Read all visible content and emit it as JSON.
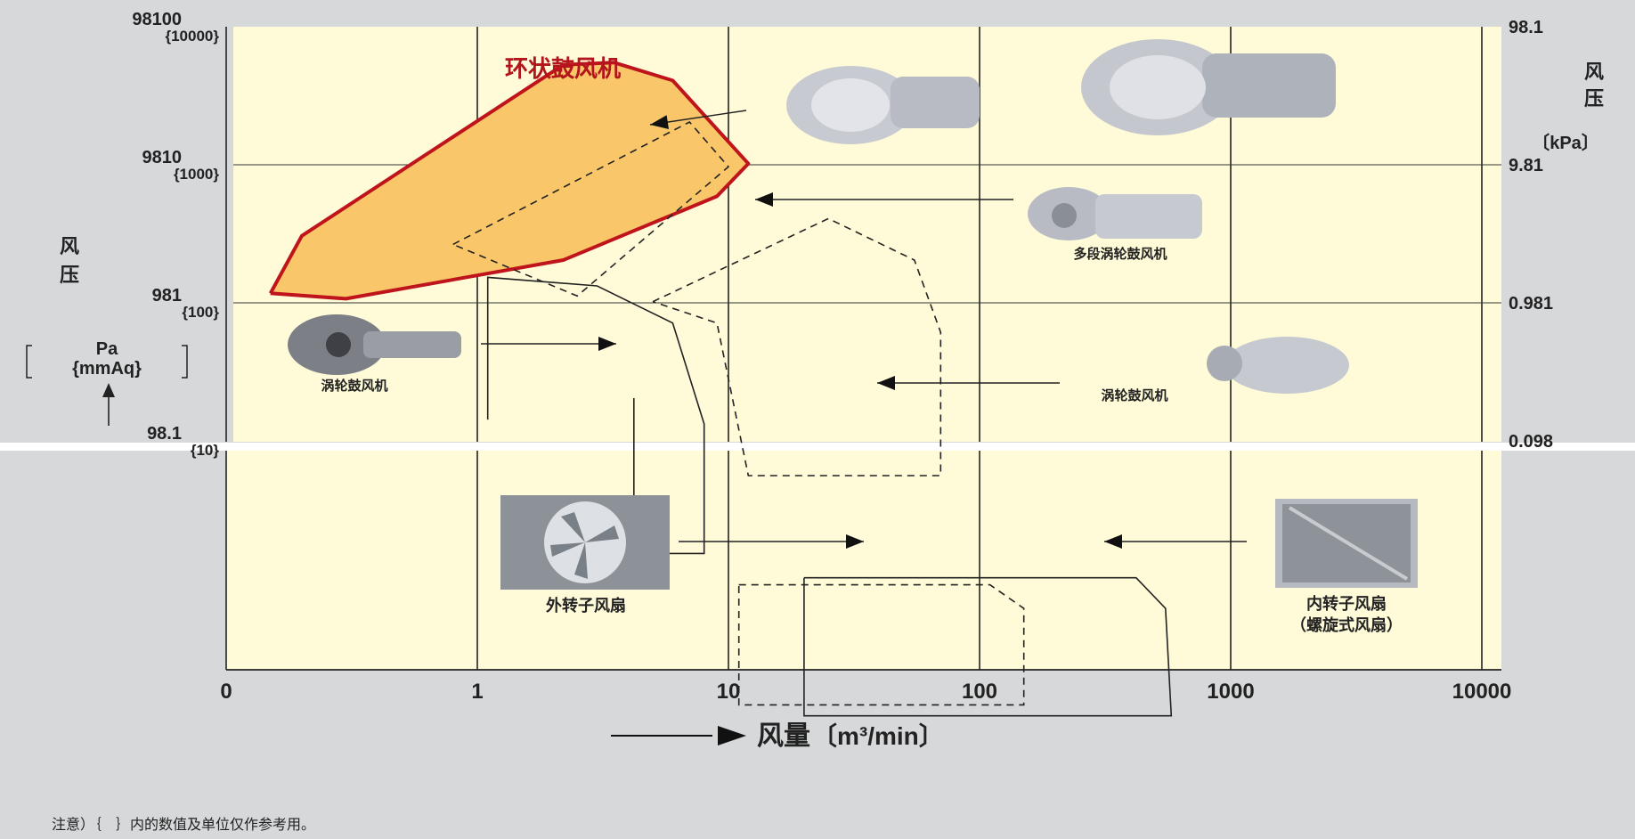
{
  "chart_data": {
    "type": "area",
    "xscale": "log",
    "x_ticks": [
      "0",
      "1",
      "10",
      "100",
      "1000",
      "10000"
    ],
    "x_label": "风量",
    "x_unit": "〔m³/min〕",
    "y_label_left": "风压",
    "y_unit_left": [
      "Pa",
      "{mmAq}"
    ],
    "y_ticks_left": [
      {
        "pa": "98100",
        "mmaq": "{10000}"
      },
      {
        "pa": "9810",
        "mmaq": "{1000}"
      },
      {
        "pa": "981",
        "mmaq": "{100}"
      },
      {
        "pa": "98.1",
        "mmaq": "{10}"
      }
    ],
    "y_label_right": "风压",
    "y_unit_right": "〔kPa〕",
    "y_ticks_right": [
      "98.1",
      "9.81",
      "0.981",
      "0.098"
    ],
    "highlight_title": "环状鼓风机",
    "highlight_color": "#f9c76a",
    "highlight_border": "#c0141c",
    "background_color": "#fffbd8",
    "series": [
      {
        "name": "环状鼓风机",
        "style": "filled",
        "points": [
          [
            0.15,
            1150
          ],
          [
            0.2,
            3000
          ],
          [
            2.2,
            52000
          ],
          [
            3.5,
            54000
          ],
          [
            6,
            40000
          ],
          [
            12,
            10000
          ],
          [
            9,
            5800
          ],
          [
            2.2,
            2000
          ],
          [
            0.3,
            1050
          ],
          [
            0.15,
            1150
          ]
        ]
      },
      {
        "name": "环状鼓风机 (inner)",
        "style": "dashed",
        "points": [
          [
            0.8,
            2600
          ],
          [
            7,
            20000
          ],
          [
            10,
            9500
          ],
          [
            2.5,
            1100
          ],
          [
            0.8,
            2600
          ]
        ]
      },
      {
        "name": "涡轮鼓风机 (small)",
        "style": "solid",
        "points": [
          [
            1.1,
            140
          ],
          [
            1.1,
            1500
          ],
          [
            3,
            1300
          ],
          [
            6,
            700
          ],
          [
            8,
            130
          ],
          [
            8,
            15
          ],
          [
            4.2,
            15
          ],
          [
            4.2,
            200
          ]
        ]
      },
      {
        "name": "多段涡轮鼓风机",
        "style": "dashed",
        "points": [
          [
            5,
            1000
          ],
          [
            25,
            4000
          ],
          [
            55,
            2000
          ],
          [
            70,
            600
          ],
          [
            70,
            55
          ],
          [
            12,
            55
          ],
          [
            9,
            700
          ],
          [
            5,
            1000
          ]
        ]
      },
      {
        "name": "外转子风扇",
        "style": "dashed",
        "points": [
          [
            11,
            8.9
          ],
          [
            110,
            8.9
          ],
          [
            150,
            6
          ],
          [
            150,
            1.2
          ],
          [
            11,
            1.2
          ],
          [
            11,
            8.9
          ]
        ]
      },
      {
        "name": "内转子风扇",
        "style": "solid",
        "points": [
          [
            20,
            10
          ],
          [
            420,
            10
          ],
          [
            550,
            6
          ],
          [
            580,
            1
          ],
          [
            20,
            1
          ],
          [
            20,
            10
          ]
        ]
      }
    ],
    "annotations": [
      {
        "label": "多段涡轮鼓风机",
        "points_to": "多段涡轮鼓风机"
      },
      {
        "label": "涡轮鼓风机",
        "points_to": "涡轮鼓风机 (small)"
      },
      {
        "label": "涡轮鼓风机",
        "points_to": "多段涡轮鼓风机"
      },
      {
        "label": "外转子风扇",
        "points_to": "外转子风扇"
      },
      {
        "label": "内转子风扇",
        "sublabel": "（螺旋式风扇）",
        "points_to": "内转子风扇"
      }
    ]
  },
  "note": "注意）｛　｝内的数值及单位仅作参考用。"
}
